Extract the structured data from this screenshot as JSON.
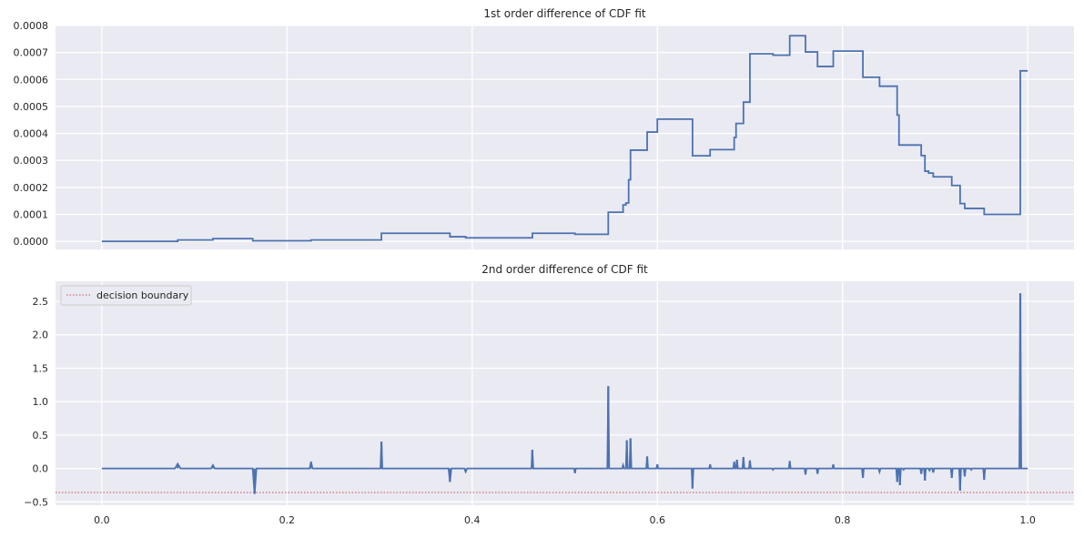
{
  "chart_data": [
    {
      "type": "line",
      "title": "1st order difference of CDF fit",
      "xlabel": "",
      "ylabel": "",
      "xlim": [
        -0.05,
        1.05
      ],
      "ylim": [
        -3e-05,
        0.0008
      ],
      "xticks": [
        0.0,
        0.2,
        0.4,
        0.6,
        0.8,
        1.0
      ],
      "xtick_labels_visible": false,
      "yticks": [
        0.0,
        0.0001,
        0.0002,
        0.0003,
        0.0004,
        0.0005,
        0.0006,
        0.0007,
        0.0008
      ],
      "ytick_labels": [
        "0.0000",
        "0.0001",
        "0.0002",
        "0.0003",
        "0.0004",
        "0.0005",
        "0.0006",
        "0.0007",
        "0.0008"
      ],
      "grid": true,
      "colors": {
        "line": "#4c72b0",
        "background": "#eaeaf2",
        "grid": "#ffffff"
      },
      "series": [
        {
          "step": true,
          "x": [
            0.0,
            0.082,
            0.12,
            0.163,
            0.226,
            0.302,
            0.376,
            0.393,
            0.465,
            0.511,
            0.547,
            0.563,
            0.566,
            0.569,
            0.571,
            0.589,
            0.6,
            0.638,
            0.657,
            0.683,
            0.685,
            0.693,
            0.7,
            0.725,
            0.743,
            0.76,
            0.773,
            0.79,
            0.822,
            0.84,
            0.859,
            0.861,
            0.866,
            0.885,
            0.889,
            0.893,
            0.898,
            0.918,
            0.927,
            0.932,
            0.939,
            0.953,
            0.992,
            0.994,
            1.0
          ],
          "y": [
            0.0,
            5e-06,
            1e-05,
            2e-06,
            5e-06,
            3e-05,
            1.7e-05,
            1.3e-05,
            3e-05,
            2.6e-05,
            0.000108,
            0.000135,
            0.000142,
            0.000228,
            0.000338,
            0.000405,
            0.000453,
            0.000317,
            0.00034,
            0.000385,
            0.000437,
            0.000516,
            0.000695,
            0.00069,
            0.000762,
            0.000702,
            0.000648,
            0.000705,
            0.000608,
            0.000575,
            0.000468,
            0.000357,
            0.000357,
            0.000318,
            0.00026,
            0.000253,
            0.000239,
            0.000207,
            0.00014,
            0.000122,
            0.000122,
            0.0001,
            0.000632,
            0.000632,
            0.000632
          ]
        }
      ]
    },
    {
      "type": "line",
      "title": "2nd order difference of CDF fit",
      "xlabel": "",
      "ylabel": "",
      "xlim": [
        -0.05,
        1.05
      ],
      "ylim": [
        -0.55,
        2.8
      ],
      "xticks": [
        0.0,
        0.2,
        0.4,
        0.6,
        0.8,
        1.0
      ],
      "xtick_labels": [
        "0.0",
        "0.2",
        "0.4",
        "0.6",
        "0.8",
        "1.0"
      ],
      "yticks": [
        -0.5,
        0.0,
        0.5,
        1.0,
        1.5,
        2.0,
        2.5
      ],
      "ytick_labels": [
        "−0.5",
        "0.0",
        "0.5",
        "1.0",
        "1.5",
        "2.0",
        "2.5"
      ],
      "grid": true,
      "legend": {
        "placement": "upper-left",
        "entries": [
          "decision boundary"
        ]
      },
      "colors": {
        "line": "#4c72b0",
        "boundary": "#c44e52",
        "background": "#eaeaf2",
        "grid": "#ffffff"
      },
      "decision_boundary": -0.36,
      "series": [
        {
          "baseline": 0.0,
          "spikes": [
            {
              "x": 0.082,
              "y": 0.07,
              "w": 0.006
            },
            {
              "x": 0.12,
              "y": 0.05,
              "w": 0.004
            },
            {
              "x": 0.165,
              "y": -0.38,
              "w": 0.004
            },
            {
              "x": 0.226,
              "y": 0.1,
              "w": 0.003
            },
            {
              "x": 0.302,
              "y": 0.4,
              "w": 0.002
            },
            {
              "x": 0.376,
              "y": -0.2,
              "w": 0.003
            },
            {
              "x": 0.393,
              "y": -0.05,
              "w": 0.003
            },
            {
              "x": 0.465,
              "y": 0.28,
              "w": 0.002
            },
            {
              "x": 0.511,
              "y": -0.07,
              "w": 0.002
            },
            {
              "x": 0.547,
              "y": 1.23,
              "w": 0.002
            },
            {
              "x": 0.563,
              "y": 0.05,
              "w": 0.002
            },
            {
              "x": 0.567,
              "y": 0.42,
              "w": 0.002
            },
            {
              "x": 0.571,
              "y": 0.45,
              "w": 0.002
            },
            {
              "x": 0.589,
              "y": 0.18,
              "w": 0.002
            },
            {
              "x": 0.6,
              "y": 0.06,
              "w": 0.002
            },
            {
              "x": 0.638,
              "y": -0.3,
              "w": 0.002
            },
            {
              "x": 0.657,
              "y": 0.06,
              "w": 0.002
            },
            {
              "x": 0.683,
              "y": 0.1,
              "w": 0.002
            },
            {
              "x": 0.686,
              "y": 0.13,
              "w": 0.002
            },
            {
              "x": 0.693,
              "y": 0.17,
              "w": 0.002
            },
            {
              "x": 0.7,
              "y": 0.12,
              "w": 0.002
            },
            {
              "x": 0.725,
              "y": -0.02,
              "w": 0.002
            },
            {
              "x": 0.743,
              "y": 0.11,
              "w": 0.002
            },
            {
              "x": 0.76,
              "y": -0.09,
              "w": 0.002
            },
            {
              "x": 0.773,
              "y": -0.08,
              "w": 0.002
            },
            {
              "x": 0.79,
              "y": 0.06,
              "w": 0.002
            },
            {
              "x": 0.822,
              "y": -0.14,
              "w": 0.002
            },
            {
              "x": 0.84,
              "y": -0.05,
              "w": 0.002
            },
            {
              "x": 0.859,
              "y": -0.2,
              "w": 0.002
            },
            {
              "x": 0.862,
              "y": -0.25,
              "w": 0.002
            },
            {
              "x": 0.866,
              "y": -0.02,
              "w": 0.002
            },
            {
              "x": 0.885,
              "y": -0.08,
              "w": 0.002
            },
            {
              "x": 0.889,
              "y": -0.18,
              "w": 0.002
            },
            {
              "x": 0.894,
              "y": -0.03,
              "w": 0.002
            },
            {
              "x": 0.898,
              "y": -0.06,
              "w": 0.002
            },
            {
              "x": 0.918,
              "y": -0.14,
              "w": 0.002
            },
            {
              "x": 0.927,
              "y": -0.33,
              "w": 0.002
            },
            {
              "x": 0.932,
              "y": -0.12,
              "w": 0.002
            },
            {
              "x": 0.939,
              "y": -0.02,
              "w": 0.002
            },
            {
              "x": 0.953,
              "y": -0.17,
              "w": 0.002
            },
            {
              "x": 0.992,
              "y": 2.62,
              "w": 0.002
            }
          ]
        }
      ]
    }
  ]
}
